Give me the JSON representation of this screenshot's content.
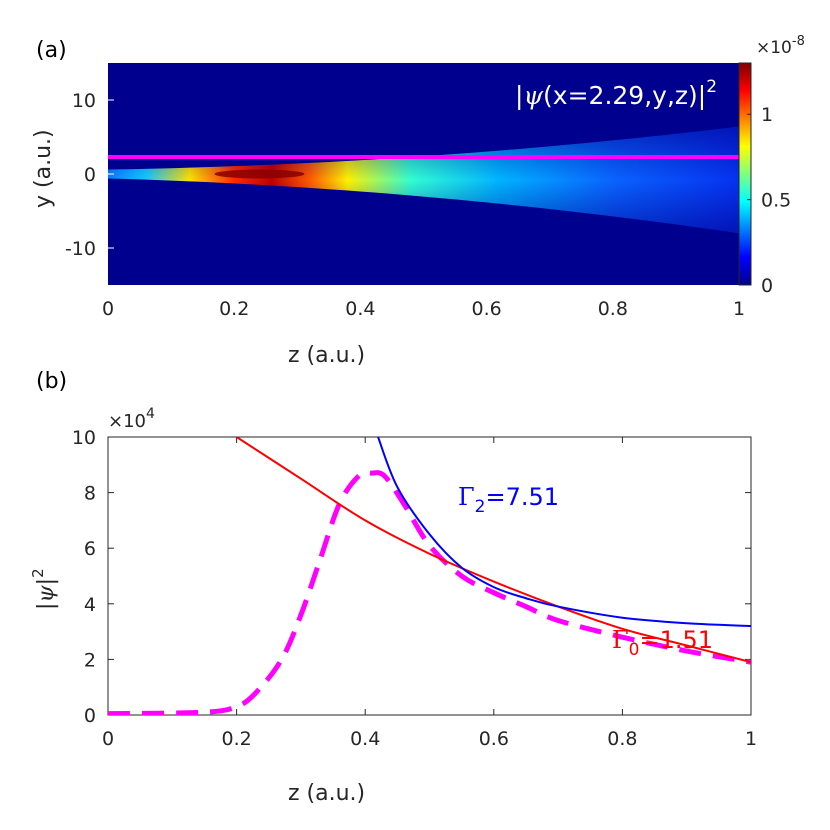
{
  "chart_data": [
    {
      "type": "heatmap",
      "panel_label": "(a)",
      "annotation": "|ψ(x=2.29,y,z)|²",
      "annotation_parts": {
        "prefix": "|",
        "psi": "ψ",
        "middle": "(x=2.29,y,z)|",
        "power": "2"
      },
      "xlabel": "z (a.u.)",
      "ylabel": "y (a.u.)",
      "xlim": [
        0,
        1
      ],
      "ylim": [
        -15,
        15
      ],
      "xticks": [
        "0",
        "0.2",
        "0.4",
        "0.6",
        "0.8",
        "1"
      ],
      "xtick_values": [
        0,
        0.2,
        0.4,
        0.6,
        0.8,
        1
      ],
      "yticks": [
        "10",
        "0",
        "-10"
      ],
      "ytick_values": [
        10,
        0,
        -10
      ],
      "colormap": "jet",
      "colorbar": {
        "range": [
          0,
          1.3
        ],
        "ticks": [
          "0",
          "0.5",
          "1"
        ],
        "tick_values": [
          0,
          0.5,
          1
        ],
        "exponent_base": "×10",
        "exponent": "-8"
      },
      "line": {
        "y": 2.29,
        "color": "#ff00ff"
      }
    },
    {
      "type": "line",
      "panel_label": "(b)",
      "xlabel": "z (a.u.)",
      "ylabel_parts": {
        "prefix": "|",
        "psi": "ψ",
        "suffix": "|",
        "power": "2"
      },
      "xlim": [
        0,
        1
      ],
      "ylim": [
        0,
        10
      ],
      "xticks": [
        "0",
        "0.2",
        "0.4",
        "0.6",
        "0.8",
        "1"
      ],
      "xtick_values": [
        0,
        0.2,
        0.4,
        0.6,
        0.8,
        1
      ],
      "yticks": [
        "0",
        "2",
        "4",
        "6",
        "8",
        "10"
      ],
      "ytick_values": [
        0,
        2,
        4,
        6,
        8,
        10
      ],
      "y_exponent_base": "×10",
      "y_exponent": "4",
      "series": [
        {
          "color": "#ff00ff",
          "style": "dashed",
          "x": [
            0,
            0.15,
            0.2,
            0.23,
            0.27,
            0.3,
            0.33,
            0.36,
            0.39,
            0.41,
            0.43,
            0.46,
            0.5,
            0.55,
            0.6,
            0.65,
            0.7,
            0.8,
            0.9,
            1.0
          ],
          "y": [
            0.05,
            0.1,
            0.3,
            0.8,
            2.0,
            3.6,
            5.6,
            7.6,
            8.6,
            8.7,
            8.6,
            7.6,
            6.1,
            5.0,
            4.4,
            3.9,
            3.4,
            2.8,
            2.3,
            1.9
          ]
        },
        {
          "color": "#ff0000",
          "style": "solid",
          "x": [
            0.2,
            0.3,
            0.4,
            0.5,
            0.6,
            0.7,
            0.8,
            0.9,
            1.0
          ],
          "y": [
            10.0,
            8.5,
            7.0,
            5.8,
            4.8,
            3.9,
            3.1,
            2.5,
            1.9
          ]
        },
        {
          "color": "#0000ff",
          "style": "solid",
          "x": [
            0.42,
            0.45,
            0.5,
            0.55,
            0.6,
            0.65,
            0.7,
            0.8,
            0.9,
            1.0
          ],
          "y": [
            10.0,
            8.2,
            6.5,
            5.3,
            4.6,
            4.2,
            3.9,
            3.5,
            3.3,
            3.2
          ]
        }
      ],
      "annotations": [
        {
          "gamma": "Γ",
          "sub": "2",
          "value": "=7.51",
          "color": "#0000ff"
        },
        {
          "gamma": "Γ",
          "sub": "0",
          "value": "=1.51",
          "color": "#ff0000"
        }
      ]
    }
  ]
}
